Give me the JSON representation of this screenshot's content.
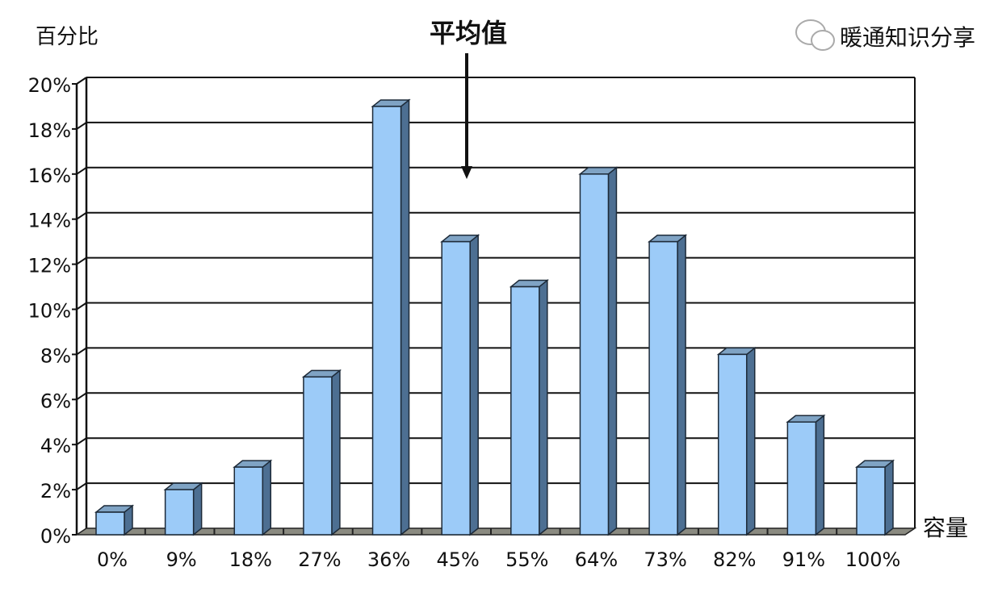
{
  "chart_data": {
    "type": "bar",
    "style": "3d-column",
    "title": "",
    "ylabel": "百分比",
    "xlabel": "容量",
    "annotation": {
      "text": "平均值",
      "points_to": "between 36% and 45%",
      "icon": "arrow-down-icon"
    },
    "categories": [
      "0%",
      "9%",
      "18%",
      "27%",
      "36%",
      "45%",
      "55%",
      "64%",
      "73%",
      "82%",
      "91%",
      "100%"
    ],
    "values": [
      1,
      2,
      3,
      7,
      19,
      13,
      11,
      16,
      13,
      8,
      5,
      3
    ],
    "value_unit": "%",
    "ylim": [
      0,
      20
    ],
    "yticks": [
      "0%",
      "2%",
      "4%",
      "6%",
      "8%",
      "10%",
      "12%",
      "14%",
      "16%",
      "18%",
      "20%"
    ],
    "grid": true,
    "legend": "none",
    "colors": {
      "bar_front": "#9ccbf8",
      "bar_top": "#7fa3c4",
      "bar_side": "#4d6f92",
      "floor": "#8a8a80"
    }
  },
  "watermark": {
    "text": "暖通知识分享",
    "icon": "wechat-icon"
  }
}
